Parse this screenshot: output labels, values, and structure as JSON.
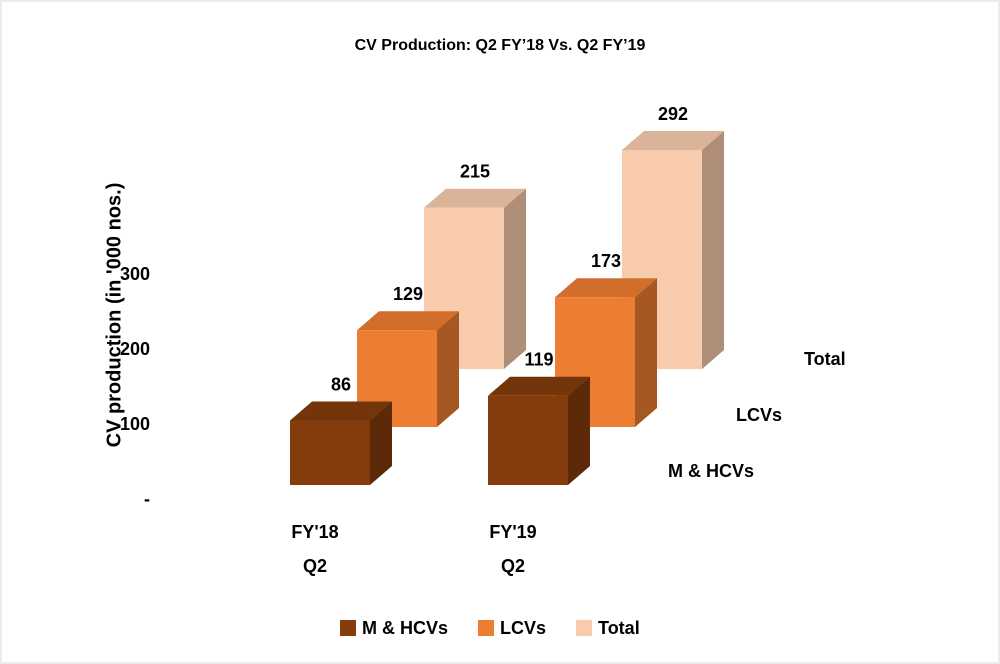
{
  "chart_data": {
    "type": "bar3d",
    "title": "CV  Production:  Q2 FY’18  Vs. Q2 FY’19",
    "y_label": "CV production  (in '000 nos.)",
    "categories": [
      "FY'18 Q2",
      "FY'19 Q2"
    ],
    "series": [
      {
        "name": "M & HCVs",
        "color": "#843c0c",
        "values": [
          86,
          119
        ]
      },
      {
        "name": "LCVs",
        "color": "#ed7d31",
        "values": [
          129,
          173
        ]
      },
      {
        "name": "Total",
        "color": "#f8cbad",
        "values": [
          215,
          292
        ]
      }
    ],
    "ylim": [
      0,
      300
    ],
    "yticks": [
      {
        "value": 0,
        "label": "-"
      },
      100,
      200,
      300
    ],
    "legend": "bottom"
  }
}
